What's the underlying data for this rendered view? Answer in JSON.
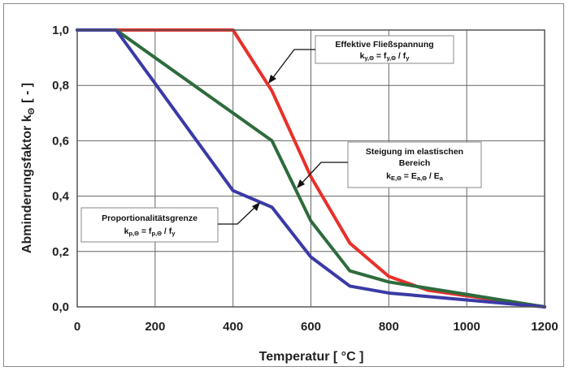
{
  "chart_data": {
    "type": "line",
    "title": "",
    "xlabel": "Temperatur  [ °C ]",
    "ylabel": "Abminderungsfaktor  k",
    "ylabel_sub": "Θ",
    "ylabel_unit": "[ - ]",
    "xlim": [
      0,
      1200
    ],
    "ylim": [
      0,
      1.0
    ],
    "grid": true,
    "x_ticks": [
      0,
      200,
      400,
      600,
      800,
      1000,
      1200
    ],
    "x_tick_labels": [
      "0",
      "200",
      "400",
      "600",
      "800",
      "1000",
      "1200"
    ],
    "y_ticks": [
      0,
      0.2,
      0.4,
      0.6,
      0.8,
      1.0
    ],
    "y_tick_labels": [
      "0,0",
      "0,2",
      "0,4",
      "0,6",
      "0,8",
      "1,0"
    ],
    "series": [
      {
        "key": "red",
        "color": "#e8302a",
        "x": [
          0,
          100,
          400,
          500,
          600,
          700,
          800,
          900,
          1000,
          1100,
          1200
        ],
        "y": [
          1.0,
          1.0,
          1.0,
          0.78,
          0.47,
          0.23,
          0.11,
          0.06,
          0.04,
          0.02,
          0.0
        ]
      },
      {
        "key": "green",
        "color": "#2e6b3c",
        "x": [
          0,
          100,
          400,
          500,
          600,
          700,
          800,
          900,
          1000,
          1100,
          1200
        ],
        "y": [
          1.0,
          1.0,
          0.7,
          0.6,
          0.31,
          0.13,
          0.09,
          0.0675,
          0.045,
          0.0225,
          0.0
        ]
      },
      {
        "key": "blue",
        "color": "#3a3aa6",
        "x": [
          0,
          100,
          200,
          300,
          400,
          500,
          600,
          700,
          800,
          900,
          1000,
          1100,
          1200
        ],
        "y": [
          1.0,
          1.0,
          0.807,
          0.613,
          0.42,
          0.36,
          0.18,
          0.075,
          0.05,
          0.0375,
          0.025,
          0.0125,
          0.0
        ]
      }
    ],
    "annotations": [
      {
        "key": "fy",
        "lines": [
          "Effektive Fließspannung"
        ],
        "formula": {
          "main": "k",
          "sub": "y,Θ",
          "mid": " = f",
          "sub2": "y,Θ",
          "end": " / f",
          "sub3": "y"
        }
      },
      {
        "key": "ea",
        "lines": [
          "Steigung im elastischen",
          "Bereich"
        ],
        "formula": {
          "main": "k",
          "sub": "E,Θ",
          "mid": " = E",
          "sub2": "a,Θ",
          "end": " / E",
          "sub3": "a"
        }
      },
      {
        "key": "fp",
        "lines": [
          "Proportionalitätsgrenze"
        ],
        "formula": {
          "main": "k",
          "sub": "p,Θ",
          "mid": " = f",
          "sub2": "p,Θ",
          "end": " / f",
          "sub3": "y"
        }
      }
    ]
  }
}
